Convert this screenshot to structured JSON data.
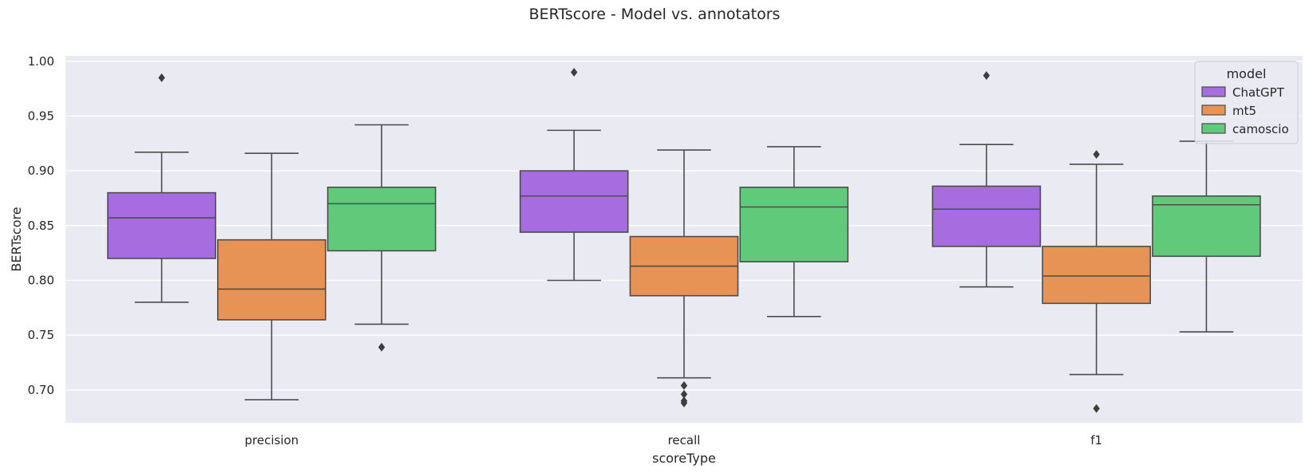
{
  "chart_data": {
    "type": "box",
    "title": "BERTscore - Model vs. annotators",
    "xlabel": "scoreType",
    "ylabel": "BERTscore",
    "ylim": [
      0.67,
      1.005
    ],
    "yticks": [
      0.7,
      0.75,
      0.8,
      0.85,
      0.9,
      0.95,
      1.0
    ],
    "grid": true,
    "legend": {
      "title": "model",
      "placement": "top-right"
    },
    "categories": [
      "precision",
      "recall",
      "f1"
    ],
    "series": [
      {
        "name": "ChatGPT",
        "color": "#a66ce0",
        "boxes": [
          {
            "whisker_low": 0.78,
            "q1": 0.82,
            "median": 0.857,
            "q3": 0.88,
            "whisker_high": 0.917,
            "outliers": [
              0.985
            ]
          },
          {
            "whisker_low": 0.8,
            "q1": 0.844,
            "median": 0.877,
            "q3": 0.9,
            "whisker_high": 0.937,
            "outliers": [
              0.99
            ]
          },
          {
            "whisker_low": 0.794,
            "q1": 0.831,
            "median": 0.865,
            "q3": 0.886,
            "whisker_high": 0.924,
            "outliers": [
              0.987
            ]
          }
        ]
      },
      {
        "name": "mt5",
        "color": "#e69355",
        "boxes": [
          {
            "whisker_low": 0.691,
            "q1": 0.764,
            "median": 0.792,
            "q3": 0.837,
            "whisker_high": 0.916,
            "outliers": []
          },
          {
            "whisker_low": 0.711,
            "q1": 0.786,
            "median": 0.813,
            "q3": 0.84,
            "whisker_high": 0.919,
            "outliers": [
              0.704,
              0.696,
              0.69,
              0.688
            ]
          },
          {
            "whisker_low": 0.714,
            "q1": 0.779,
            "median": 0.804,
            "q3": 0.831,
            "whisker_high": 0.906,
            "outliers": [
              0.915,
              0.683
            ]
          }
        ]
      },
      {
        "name": "camoscio",
        "color": "#60c97a",
        "boxes": [
          {
            "whisker_low": 0.76,
            "q1": 0.827,
            "median": 0.87,
            "q3": 0.885,
            "whisker_high": 0.942,
            "outliers": [
              0.739
            ]
          },
          {
            "whisker_low": 0.767,
            "q1": 0.817,
            "median": 0.867,
            "q3": 0.885,
            "whisker_high": 0.922,
            "outliers": []
          },
          {
            "whisker_low": 0.753,
            "q1": 0.822,
            "median": 0.869,
            "q3": 0.877,
            "whisker_high": 0.927,
            "outliers": []
          }
        ]
      }
    ]
  }
}
